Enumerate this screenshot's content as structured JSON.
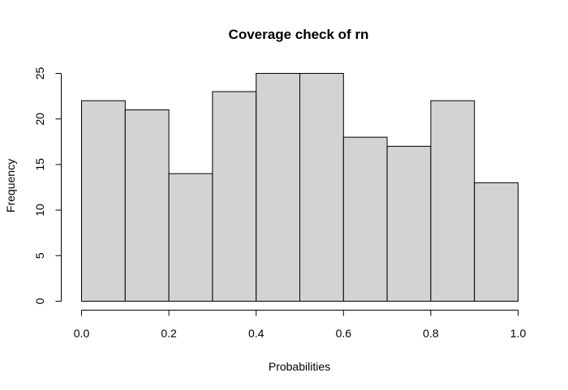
{
  "chart_data": {
    "type": "bar",
    "title": "Coverage check of rn",
    "xlabel": "Probabilities",
    "ylabel": "Frequency",
    "bins": [
      {
        "start": 0.0,
        "end": 0.1,
        "value": 22
      },
      {
        "start": 0.1,
        "end": 0.2,
        "value": 21
      },
      {
        "start": 0.2,
        "end": 0.3,
        "value": 14
      },
      {
        "start": 0.3,
        "end": 0.4,
        "value": 23
      },
      {
        "start": 0.4,
        "end": 0.5,
        "value": 25
      },
      {
        "start": 0.5,
        "end": 0.6,
        "value": 25
      },
      {
        "start": 0.6,
        "end": 0.7,
        "value": 18
      },
      {
        "start": 0.7,
        "end": 0.8,
        "value": 17
      },
      {
        "start": 0.8,
        "end": 0.9,
        "value": 22
      },
      {
        "start": 0.9,
        "end": 1.0,
        "value": 13
      }
    ],
    "xlim": [
      0,
      1
    ],
    "ylim": [
      0,
      25
    ],
    "x_ticks": [
      "0.0",
      "0.2",
      "0.4",
      "0.6",
      "0.8",
      "1.0"
    ],
    "y_ticks": [
      "0",
      "5",
      "10",
      "15",
      "20",
      "25"
    ],
    "grid": false,
    "legend": "none",
    "bar_fill": "#d3d3d3",
    "bar_stroke": "#000000"
  }
}
